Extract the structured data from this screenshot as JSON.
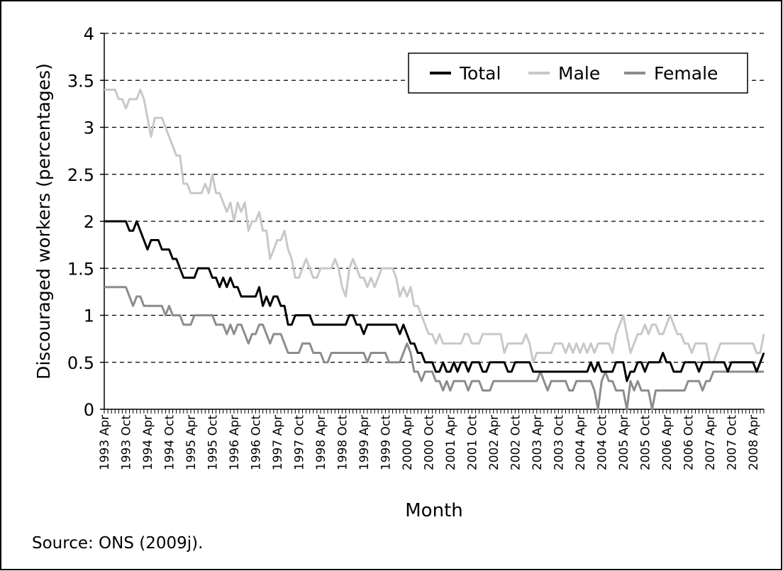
{
  "chart_data": {
    "type": "line",
    "y_label": "Discouraged workers (percentages)",
    "x_label": "Month",
    "note": "Source: ONS (2009j).",
    "ylim": [
      0,
      4
    ],
    "yticks": [
      0,
      0.5,
      1,
      1.5,
      2,
      2.5,
      3,
      3.5,
      4
    ],
    "grid": true,
    "legend": "top-right",
    "categories": [
      "1993 Apr",
      null,
      null,
      null,
      null,
      null,
      "1993 Oct",
      null,
      null,
      null,
      null,
      null,
      "1994 Apr",
      null,
      null,
      null,
      null,
      null,
      "1994 Oct",
      null,
      null,
      null,
      null,
      null,
      "1995 Apr",
      null,
      null,
      null,
      null,
      null,
      "1995 Oct",
      null,
      null,
      null,
      null,
      null,
      "1996 Apr",
      null,
      null,
      null,
      null,
      null,
      "1996 Oct",
      null,
      null,
      null,
      null,
      null,
      "1997 Apr",
      null,
      null,
      null,
      null,
      null,
      "1997 Oct",
      null,
      null,
      null,
      null,
      null,
      "1998 Apr",
      null,
      null,
      null,
      null,
      null,
      "1998 Oct",
      null,
      null,
      null,
      null,
      null,
      "1999 Apr",
      null,
      null,
      null,
      null,
      null,
      "1999 Oct",
      null,
      null,
      null,
      null,
      null,
      "2000 Apr",
      null,
      null,
      null,
      null,
      null,
      "2000 Oct",
      null,
      null,
      null,
      null,
      null,
      "2001 Apr",
      null,
      null,
      null,
      null,
      null,
      "2001 Oct",
      null,
      null,
      null,
      null,
      null,
      "2002 Apr",
      null,
      null,
      null,
      null,
      null,
      "2002 Oct",
      null,
      null,
      null,
      null,
      null,
      "2003 Apr",
      null,
      null,
      null,
      null,
      null,
      "2003 Oct",
      null,
      null,
      null,
      null,
      null,
      "2004 Apr",
      null,
      null,
      null,
      null,
      null,
      "2004 Oct",
      null,
      null,
      null,
      null,
      null,
      "2005 Apr",
      null,
      null,
      null,
      null,
      null,
      "2005 Oct",
      null,
      null,
      null,
      null,
      null,
      "2006 Apr",
      null,
      null,
      null,
      null,
      null,
      "2006 Oct",
      null,
      null,
      null,
      null,
      null,
      "2007 Apr",
      null,
      null,
      null,
      null,
      null,
      "2007 Oct",
      null,
      null,
      null,
      null,
      null,
      "2008 Apr",
      null,
      null,
      null
    ],
    "series": [
      {
        "name": "Total",
        "color": "#000000",
        "values": [
          2,
          2,
          2,
          2,
          2,
          2,
          2,
          1.9,
          1.9,
          2,
          1.9,
          1.8,
          1.7,
          1.8,
          1.8,
          1.8,
          1.7,
          1.7,
          1.7,
          1.6,
          1.6,
          1.5,
          1.4,
          1.4,
          1.4,
          1.4,
          1.5,
          1.5,
          1.5,
          1.5,
          1.4,
          1.4,
          1.3,
          1.4,
          1.3,
          1.4,
          1.3,
          1.3,
          1.2,
          1.2,
          1.2,
          1.2,
          1.2,
          1.3,
          1.1,
          1.2,
          1.1,
          1.2,
          1.2,
          1.1,
          1.1,
          0.9,
          0.9,
          1,
          1,
          1,
          1,
          1,
          0.9,
          0.9,
          0.9,
          0.9,
          0.9,
          0.9,
          0.9,
          0.9,
          0.9,
          0.9,
          1,
          1,
          0.9,
          0.9,
          0.8,
          0.9,
          0.9,
          0.9,
          0.9,
          0.9,
          0.9,
          0.9,
          0.9,
          0.9,
          0.8,
          0.9,
          0.8,
          0.7,
          0.7,
          0.6,
          0.6,
          0.5,
          0.5,
          0.5,
          0.4,
          0.4,
          0.5,
          0.4,
          0.4,
          0.5,
          0.4,
          0.5,
          0.5,
          0.4,
          0.5,
          0.5,
          0.5,
          0.4,
          0.4,
          0.5,
          0.5,
          0.5,
          0.5,
          0.5,
          0.4,
          0.4,
          0.5,
          0.5,
          0.5,
          0.5,
          0.5,
          0.4,
          0.4,
          0.4,
          0.4,
          0.4,
          0.4,
          0.4,
          0.4,
          0.4,
          0.4,
          0.4,
          0.4,
          0.4,
          0.4,
          0.4,
          0.4,
          0.5,
          0.4,
          0.5,
          0.4,
          0.4,
          0.4,
          0.4,
          0.5,
          0.5,
          0.5,
          0.3,
          0.4,
          0.4,
          0.5,
          0.5,
          0.4,
          0.5,
          0.5,
          0.5,
          0.5,
          0.6,
          0.5,
          0.5,
          0.4,
          0.4,
          0.4,
          0.5,
          0.5,
          0.5,
          0.5,
          0.4,
          0.5,
          0.5,
          0.5,
          0.5,
          0.5,
          0.5,
          0.5,
          0.4,
          0.5,
          0.5,
          0.5,
          0.5,
          0.5,
          0.5,
          0.5,
          0.4,
          0.5,
          0.6
        ]
      },
      {
        "name": "Male",
        "color": "#c8c8c8",
        "values": [
          3.4,
          3.4,
          3.4,
          3.4,
          3.3,
          3.3,
          3.2,
          3.3,
          3.3,
          3.3,
          3.4,
          3.3,
          3.1,
          2.9,
          3.1,
          3.1,
          3.1,
          3.0,
          2.9,
          2.8,
          2.7,
          2.7,
          2.4,
          2.4,
          2.3,
          2.3,
          2.3,
          2.3,
          2.4,
          2.3,
          2.5,
          2.3,
          2.3,
          2.2,
          2.1,
          2.2,
          2.0,
          2.2,
          2.1,
          2.2,
          1.9,
          2.0,
          2.0,
          2.1,
          1.9,
          1.9,
          1.6,
          1.7,
          1.8,
          1.8,
          1.9,
          1.7,
          1.6,
          1.4,
          1.4,
          1.5,
          1.6,
          1.5,
          1.4,
          1.4,
          1.5,
          1.5,
          1.5,
          1.5,
          1.6,
          1.5,
          1.3,
          1.2,
          1.5,
          1.6,
          1.5,
          1.4,
          1.4,
          1.3,
          1.4,
          1.3,
          1.4,
          1.5,
          1.5,
          1.5,
          1.5,
          1.4,
          1.2,
          1.3,
          1.2,
          1.3,
          1.1,
          1.1,
          1.0,
          0.9,
          0.8,
          0.8,
          0.7,
          0.8,
          0.7,
          0.7,
          0.7,
          0.7,
          0.7,
          0.7,
          0.8,
          0.8,
          0.7,
          0.7,
          0.7,
          0.8,
          0.8,
          0.8,
          0.8,
          0.8,
          0.8,
          0.6,
          0.7,
          0.7,
          0.7,
          0.7,
          0.7,
          0.8,
          0.7,
          0.5,
          0.6,
          0.6,
          0.6,
          0.6,
          0.6,
          0.7,
          0.7,
          0.7,
          0.6,
          0.7,
          0.6,
          0.7,
          0.6,
          0.7,
          0.6,
          0.7,
          0.6,
          0.7,
          0.7,
          0.7,
          0.7,
          0.6,
          0.8,
          0.9,
          1.0,
          0.8,
          0.6,
          0.7,
          0.8,
          0.8,
          0.9,
          0.8,
          0.9,
          0.9,
          0.8,
          0.8,
          0.9,
          1.0,
          0.9,
          0.8,
          0.8,
          0.7,
          0.7,
          0.6,
          0.7,
          0.7,
          0.7,
          0.7,
          0.5,
          0.5,
          0.6,
          0.7,
          0.7,
          0.7,
          0.7,
          0.7,
          0.7,
          0.7,
          0.7,
          0.7,
          0.7,
          0.6,
          0.6,
          0.8
        ]
      },
      {
        "name": "Female",
        "color": "#8c8c8c",
        "values": [
          1.3,
          1.3,
          1.3,
          1.3,
          1.3,
          1.3,
          1.3,
          1.2,
          1.1,
          1.2,
          1.2,
          1.1,
          1.1,
          1.1,
          1.1,
          1.1,
          1.1,
          1.0,
          1.1,
          1.0,
          1.0,
          1.0,
          0.9,
          0.9,
          0.9,
          1.0,
          1.0,
          1.0,
          1.0,
          1.0,
          1.0,
          0.9,
          0.9,
          0.9,
          0.8,
          0.9,
          0.8,
          0.9,
          0.9,
          0.8,
          0.7,
          0.8,
          0.8,
          0.9,
          0.9,
          0.8,
          0.7,
          0.8,
          0.8,
          0.8,
          0.7,
          0.6,
          0.6,
          0.6,
          0.6,
          0.7,
          0.7,
          0.7,
          0.6,
          0.6,
          0.6,
          0.5,
          0.5,
          0.6,
          0.6,
          0.6,
          0.6,
          0.6,
          0.6,
          0.6,
          0.6,
          0.6,
          0.6,
          0.5,
          0.6,
          0.6,
          0.6,
          0.6,
          0.6,
          0.5,
          0.5,
          0.5,
          0.5,
          0.6,
          0.7,
          0.6,
          0.4,
          0.4,
          0.3,
          0.4,
          0.4,
          0.4,
          0.3,
          0.3,
          0.2,
          0.3,
          0.2,
          0.3,
          0.3,
          0.3,
          0.3,
          0.2,
          0.3,
          0.3,
          0.3,
          0.2,
          0.2,
          0.2,
          0.3,
          0.3,
          0.3,
          0.3,
          0.3,
          0.3,
          0.3,
          0.3,
          0.3,
          0.3,
          0.3,
          0.3,
          0.3,
          0.4,
          0.3,
          0.2,
          0.3,
          0.3,
          0.3,
          0.3,
          0.3,
          0.2,
          0.2,
          0.3,
          0.3,
          0.3,
          0.3,
          0.3,
          0.2,
          0,
          0.3,
          0.4,
          0.3,
          0.3,
          0.2,
          0.2,
          0.2,
          0,
          0.3,
          0.2,
          0.3,
          0.2,
          0.2,
          0.2,
          0,
          0.2,
          0.2,
          0.2,
          0.2,
          0.2,
          0.2,
          0.2,
          0.2,
          0.2,
          0.3,
          0.3,
          0.3,
          0.3,
          0.2,
          0.3,
          0.3,
          0.4,
          0.4,
          0.4,
          0.4,
          0.4,
          0.4,
          0.4,
          0.4,
          0.4,
          0.4,
          0.4,
          0.4,
          0.4,
          0.4,
          0.4
        ]
      }
    ]
  }
}
